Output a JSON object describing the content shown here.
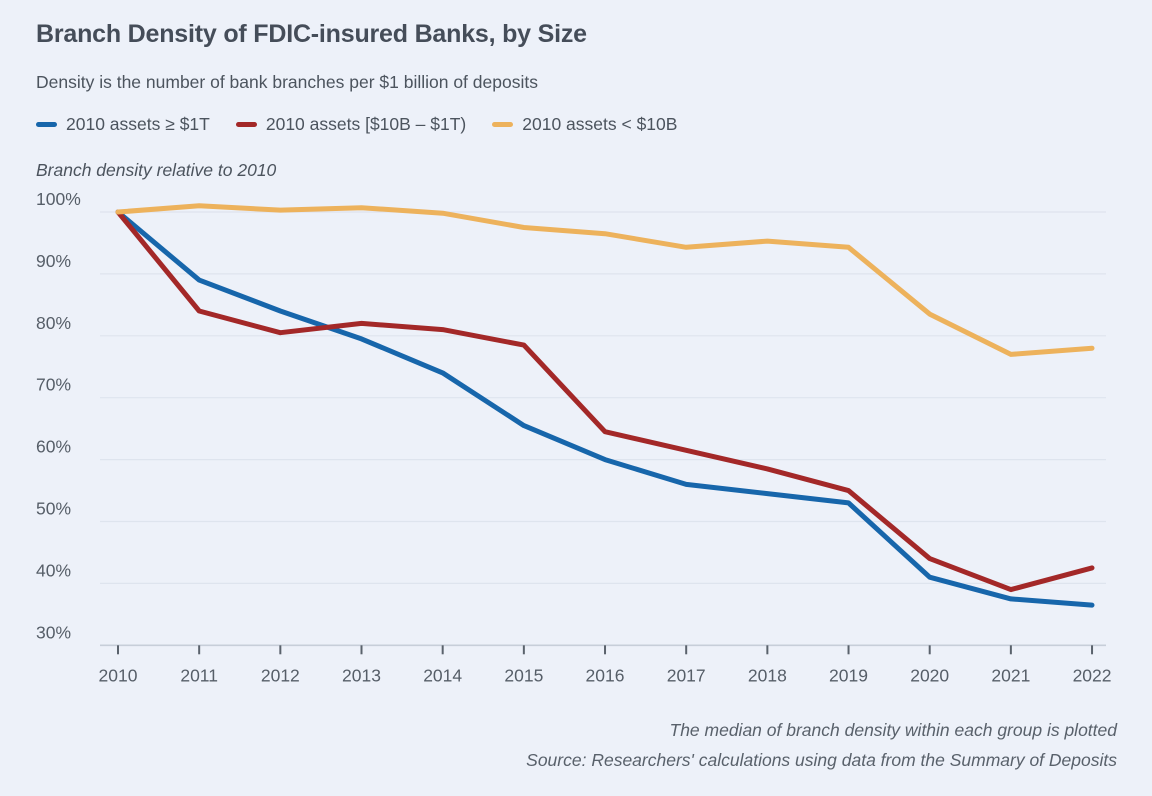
{
  "header": {
    "title": "Branch Density of FDIC-insured Banks, by Size",
    "subtitle": "Density is the number of bank branches per $1 billion of deposits"
  },
  "footer": {
    "note": "The median of branch density within each group is plotted",
    "source": "Source: Researchers' calculations using data from the Summary of Deposits"
  },
  "colors": {
    "background": "#edf1f9",
    "grid": "#dee4ee",
    "axis": "#c7ced9",
    "tick": "#5a626c",
    "label": "#565e68",
    "blue": "#1766ab",
    "red": "#a32828",
    "orange": "#edb25c"
  },
  "chart_data": {
    "type": "line",
    "title": "Branch Density of FDIC-insured Banks, by Size",
    "ylabel": "Branch density relative to 2010",
    "x": [
      2010,
      2011,
      2012,
      2013,
      2014,
      2015,
      2016,
      2017,
      2018,
      2019,
      2020,
      2021,
      2022
    ],
    "series": [
      {
        "name": "2010 assets ≥ $1T",
        "color": "#1766ab",
        "values": [
          100,
          89,
          84,
          79.5,
          74,
          65.5,
          60,
          56,
          54.5,
          53,
          41,
          37.5,
          36.5
        ]
      },
      {
        "name": "2010 assets [$10B – $1T)",
        "color": "#a32828",
        "values": [
          100,
          84,
          80.5,
          82,
          81,
          78.5,
          64.5,
          61.5,
          58.5,
          55,
          44,
          39,
          42.5
        ]
      },
      {
        "name": "2010 assets < $10B",
        "color": "#edb25c",
        "values": [
          100,
          101,
          100.3,
          100.7,
          99.8,
          97.5,
          96.5,
          94.3,
          95.3,
          94.3,
          83.5,
          77,
          78
        ]
      }
    ],
    "yticks": [
      100,
      90,
      80,
      70,
      60,
      50,
      40,
      30
    ],
    "ytick_suffix": "%",
    "ylim": [
      30,
      102
    ],
    "grid": true,
    "legend_position": "top"
  }
}
